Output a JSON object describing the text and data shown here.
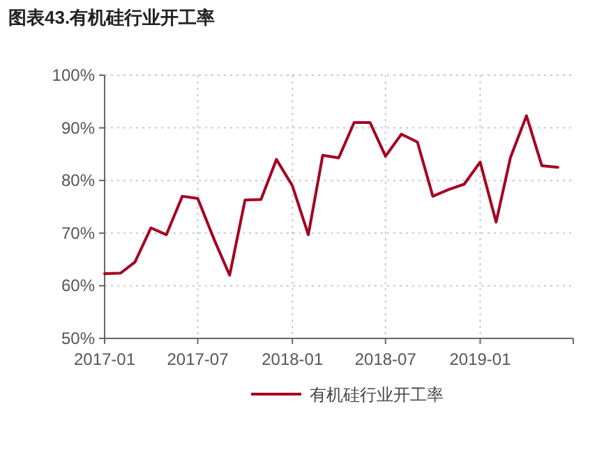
{
  "chart_data": {
    "type": "line",
    "title": "图表43.有机硅行业开工率",
    "x": [
      "2017-01",
      "2017-02",
      "2017-03",
      "2017-04",
      "2017-05",
      "2017-06",
      "2017-07",
      "2017-08",
      "2017-09",
      "2017-10",
      "2017-11",
      "2017-12",
      "2018-01",
      "2018-02",
      "2018-03",
      "2018-04",
      "2018-05",
      "2018-06",
      "2018-07",
      "2018-08",
      "2018-09",
      "2018-10",
      "2018-11",
      "2018-12",
      "2019-01",
      "2019-02",
      "2019-03",
      "2019-04",
      "2019-05",
      "2019-06"
    ],
    "series": [
      {
        "name": "有机硅行业开工率",
        "color": "#a50021",
        "values": [
          62.3,
          62.4,
          64.5,
          71,
          69.7,
          77,
          76.6,
          69,
          62,
          76.3,
          76.4,
          84,
          79,
          69.7,
          84.8,
          84.3,
          91,
          91,
          84.6,
          88.8,
          87.3,
          77,
          78.3,
          79.3,
          83.5,
          72.1,
          84.4,
          92.3,
          82.8,
          82.5
        ]
      }
    ],
    "xlim": [
      "2017-01",
      "2019-07"
    ],
    "xticks": [
      "2017-01",
      "2017-07",
      "2018-01",
      "2018-07",
      "2019-01"
    ],
    "ylim": [
      50,
      100
    ],
    "yticks": [
      {
        "value": 50,
        "label": "50%"
      },
      {
        "value": 60,
        "label": "60%"
      },
      {
        "value": 70,
        "label": "70%"
      },
      {
        "value": 80,
        "label": "80%"
      },
      {
        "value": 90,
        "label": "90%"
      },
      {
        "value": 100,
        "label": "100%"
      }
    ],
    "grid": true,
    "legend": "bottom",
    "marker": "none",
    "line_style": "solid"
  }
}
